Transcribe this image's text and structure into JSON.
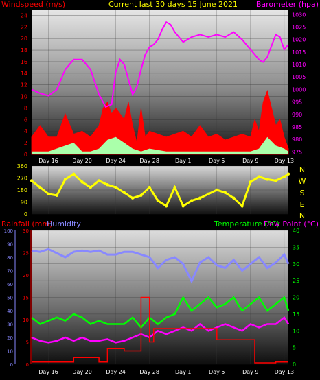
{
  "header": {
    "left_label": "Windspeed (m/s)",
    "center_label": "Current last 30 days 15 June 2021",
    "right_label": "Barometer (hpa)"
  },
  "wind_direction_axis": {
    "compass_labels": [
      "N",
      "W",
      "S",
      "E",
      "N"
    ]
  },
  "lower_header": {
    "rainfall_label": "Rainfall (mm)",
    "humidity_label": "Humidity",
    "temperature_label": "Temperature (°C)",
    "dewpoint_label": "Dew Point (°C)"
  },
  "colors": {
    "windspeed": "#ff0000",
    "gust_fill": "#aaffaa",
    "barometer": "#ff00ff",
    "wind_direction": "#ffff00",
    "rainfall": "#ff0000",
    "humidity": "#8888ff",
    "temperature": "#00ff00",
    "dewpoint": "#ff00ff",
    "title": "#ffff00",
    "left_axis": "#ff0000",
    "right_axis": "#ff00ff"
  },
  "chart_data": [
    {
      "type": "line",
      "name": "windspeed-barometer",
      "x_ticks": [
        "Day 16",
        "Day 20",
        "Day 24",
        "Day 28",
        "Day 1",
        "Day 5",
        "Day 9",
        "Day 13"
      ],
      "y_left_ticks": [
        0,
        2,
        4,
        6,
        8,
        10,
        12,
        14,
        16,
        18,
        20,
        22,
        24
      ],
      "y_left_range": [
        0,
        25
      ],
      "y_right_ticks": [
        975,
        980,
        985,
        990,
        995,
        1000,
        1005,
        1010,
        1015,
        1020,
        1025,
        1030
      ],
      "y_right_range": [
        974,
        1032
      ],
      "day_range": [
        14,
        44.5
      ],
      "barometer": {
        "x": [
          14,
          15,
          16,
          17,
          18,
          19,
          20,
          21,
          22,
          22.8,
          23.5,
          24,
          24.5,
          25,
          25.5,
          26,
          26.5,
          27,
          27.5,
          28,
          28.5,
          29,
          29.5,
          30,
          30.5,
          31,
          31.5,
          32,
          33,
          34,
          35,
          36,
          37,
          38,
          39,
          40,
          41,
          41.5,
          42,
          43,
          43.5,
          44,
          44.5
        ],
        "y": [
          1000,
          998.5,
          997.5,
          1000,
          1008,
          1012,
          1012,
          1008,
          998,
          993,
          994,
          1007,
          1012,
          1010,
          1004,
          998,
          1001,
          1008,
          1014,
          1017,
          1018,
          1020,
          1024,
          1027,
          1026,
          1023,
          1021,
          1019,
          1021,
          1022,
          1021,
          1022,
          1021,
          1023,
          1020,
          1016,
          1012,
          1011,
          1013,
          1022,
          1021,
          1016,
          1018
        ]
      },
      "windspeed": {
        "x": [
          14,
          15,
          16,
          17,
          18,
          19,
          20,
          21,
          22,
          22.5,
          23,
          23.5,
          24,
          24.5,
          25,
          25.5,
          26,
          26.5,
          27,
          27.5,
          28,
          29,
          30,
          31,
          32,
          33,
          34,
          35,
          36,
          37,
          38,
          39,
          40,
          40.5,
          41,
          41.5,
          42,
          42.5,
          43,
          43.5,
          44,
          44.5
        ],
        "y": [
          3,
          5,
          3,
          3,
          7,
          3.5,
          4,
          3,
          5,
          8,
          9,
          7,
          8,
          7,
          6,
          9,
          5,
          2,
          8,
          3,
          4,
          3.5,
          3,
          3.5,
          4,
          3,
          5,
          3,
          3.5,
          2.5,
          3,
          3.5,
          3,
          6,
          4,
          9,
          11,
          8,
          5,
          6,
          3,
          1
        ]
      },
      "gust": {
        "x": [
          14,
          16,
          18,
          19,
          20,
          21,
          22,
          23,
          24,
          25,
          26,
          27,
          28,
          30,
          32,
          34,
          36,
          38,
          40,
          41,
          42,
          43,
          44,
          44.5
        ],
        "y": [
          0.5,
          0.5,
          1.5,
          2,
          0.5,
          0.5,
          1,
          2.5,
          3,
          2,
          1,
          0.5,
          1,
          0.5,
          0.5,
          0.5,
          0.5,
          0.5,
          0.5,
          1,
          3,
          1.5,
          1,
          0.5
        ]
      }
    },
    {
      "type": "scatter",
      "name": "wind-direction",
      "y_ticks": [
        0,
        90,
        180,
        270,
        360
      ],
      "y_range": [
        0,
        360
      ],
      "x": [
        14,
        15,
        16,
        17,
        18,
        19,
        20,
        21,
        22,
        23,
        24,
        25,
        26,
        27,
        28,
        29,
        30,
        31,
        32,
        33,
        34,
        35,
        36,
        37,
        38,
        39,
        40,
        41,
        42,
        43,
        44,
        44.5
      ],
      "y": [
        250,
        200,
        150,
        140,
        260,
        300,
        240,
        200,
        250,
        220,
        200,
        160,
        120,
        140,
        200,
        100,
        60,
        200,
        60,
        100,
        120,
        150,
        180,
        160,
        120,
        60,
        240,
        280,
        260,
        250,
        280,
        300
      ]
    },
    {
      "type": "line",
      "name": "temperature-humidity-rain",
      "x_ticks": [
        "Day 16",
        "Day 20",
        "Day 24",
        "Day 28",
        "Day 1",
        "Day 5",
        "Day 9",
        "Day 13"
      ],
      "rain_ticks": [
        0,
        5,
        10,
        15,
        20,
        25,
        30
      ],
      "humidity_ticks": [
        0,
        10,
        20,
        30,
        40,
        50,
        60,
        70,
        80,
        90,
        100
      ],
      "temperature_ticks": [
        0,
        5,
        10,
        15,
        20,
        25,
        30,
        35,
        40
      ],
      "temperature_range": [
        0,
        40
      ],
      "humidity_range": [
        0,
        100
      ],
      "rain_range": [
        0,
        30
      ],
      "temperature": {
        "x": [
          14,
          15,
          16,
          17,
          18,
          19,
          20,
          21,
          22,
          23,
          24,
          25,
          26,
          27,
          28,
          29,
          30,
          31,
          32,
          33,
          34,
          35,
          36,
          37,
          38,
          39,
          40,
          41,
          42,
          43,
          44,
          44.5
        ],
        "y": [
          14,
          12,
          13,
          14,
          13,
          15,
          14,
          12,
          13,
          12,
          12,
          12,
          14,
          11,
          14,
          12,
          14,
          15,
          20,
          16,
          18,
          20,
          17,
          18,
          20,
          16,
          18,
          20,
          16,
          18,
          20,
          16
        ]
      },
      "dewpoint": {
        "x": [
          14,
          15,
          16,
          17,
          18,
          19,
          20,
          21,
          22,
          23,
          24,
          25,
          26,
          27,
          28,
          29,
          30,
          31,
          32,
          33,
          34,
          35,
          36,
          37,
          38,
          39,
          40,
          41,
          42,
          43,
          44,
          44.5
        ],
        "y": [
          8,
          7,
          6.5,
          7,
          8,
          7,
          8,
          7,
          7,
          7.5,
          6.5,
          7,
          8,
          9,
          8,
          10,
          9,
          10,
          11,
          10,
          12,
          10,
          11,
          12,
          11,
          10,
          12,
          11,
          12,
          12,
          14,
          12
        ]
      },
      "humidity": {
        "x": [
          14,
          15,
          16,
          17,
          18,
          19,
          20,
          21,
          22,
          23,
          24,
          25,
          26,
          27,
          28,
          29,
          30,
          31,
          32,
          33,
          34,
          35,
          36,
          37,
          38,
          39,
          40,
          41,
          42,
          43,
          44,
          44.5
        ],
        "y": [
          85,
          84,
          86,
          83,
          80,
          84,
          85,
          84,
          85,
          82,
          82,
          84,
          84,
          82,
          80,
          72,
          78,
          80,
          75,
          62,
          76,
          80,
          74,
          72,
          78,
          70,
          75,
          80,
          72,
          76,
          82,
          75
        ]
      },
      "rainfall": {
        "x": [
          14,
          19,
          22,
          23,
          25,
          27,
          28,
          28.5,
          36,
          40.5,
          43
        ],
        "y": [
          0.5,
          1.5,
          0.5,
          3.5,
          3,
          15,
          5,
          8,
          5.5,
          0.3,
          0.5
        ]
      }
    }
  ]
}
